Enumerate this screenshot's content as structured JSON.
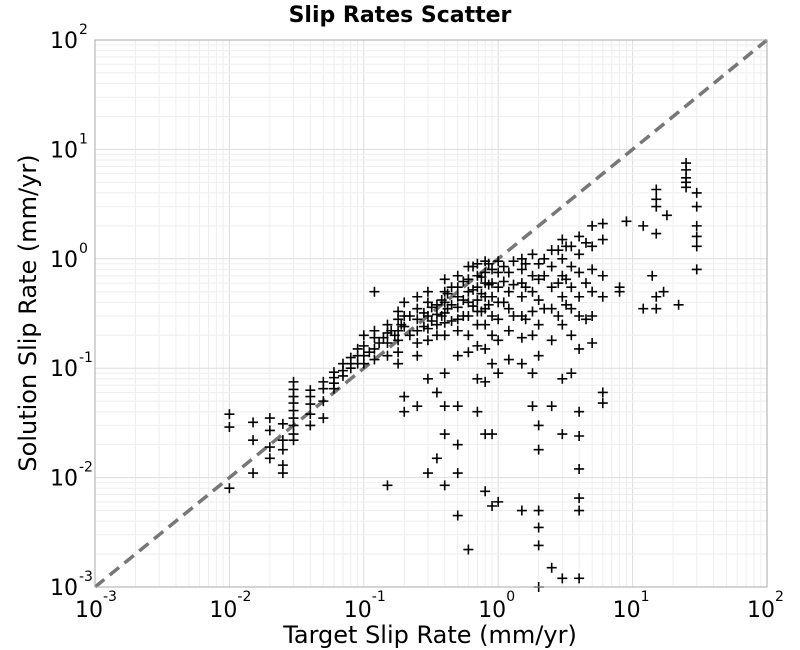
{
  "chart_data": {
    "type": "scatter",
    "title": "Slip Rates Scatter",
    "xlabel": "Target Slip Rate (mm/yr)",
    "ylabel": "Solution Slip Rate (mm/yr)",
    "xscale": "log",
    "yscale": "log",
    "xlim": [
      0.001,
      100
    ],
    "ylim": [
      0.001,
      100
    ],
    "grid": true,
    "x_ticks": [
      {
        "base": "10",
        "exp": "-3"
      },
      {
        "base": "10",
        "exp": "-2"
      },
      {
        "base": "10",
        "exp": "-1"
      },
      {
        "base": "10",
        "exp": "0"
      },
      {
        "base": "10",
        "exp": "1"
      },
      {
        "base": "10",
        "exp": "2"
      }
    ],
    "y_ticks": [
      {
        "base": "10",
        "exp": "-3"
      },
      {
        "base": "10",
        "exp": "-2"
      },
      {
        "base": "10",
        "exp": "-1"
      },
      {
        "base": "10",
        "exp": "0"
      },
      {
        "base": "10",
        "exp": "1"
      },
      {
        "base": "10",
        "exp": "2"
      }
    ],
    "reference_line": {
      "from": [
        0.001,
        0.001
      ],
      "to": [
        100,
        100
      ],
      "style": "dashed",
      "color": "#777777"
    },
    "marker": "+",
    "marker_color": "#000000",
    "points": [
      [
        0.01,
        0.038
      ],
      [
        0.01,
        0.029
      ],
      [
        0.01,
        0.008
      ],
      [
        0.015,
        0.032
      ],
      [
        0.015,
        0.022
      ],
      [
        0.015,
        0.011
      ],
      [
        0.02,
        0.035
      ],
      [
        0.02,
        0.027
      ],
      [
        0.02,
        0.019
      ],
      [
        0.02,
        0.015
      ],
      [
        0.025,
        0.031
      ],
      [
        0.025,
        0.022
      ],
      [
        0.025,
        0.018
      ],
      [
        0.025,
        0.013
      ],
      [
        0.025,
        0.011
      ],
      [
        0.03,
        0.075
      ],
      [
        0.03,
        0.064
      ],
      [
        0.03,
        0.055
      ],
      [
        0.03,
        0.048
      ],
      [
        0.03,
        0.041
      ],
      [
        0.03,
        0.035
      ],
      [
        0.03,
        0.03
      ],
      [
        0.03,
        0.025
      ],
      [
        0.03,
        0.022
      ],
      [
        0.04,
        0.063
      ],
      [
        0.04,
        0.055
      ],
      [
        0.04,
        0.047
      ],
      [
        0.04,
        0.038
      ],
      [
        0.04,
        0.03
      ],
      [
        0.05,
        0.075
      ],
      [
        0.05,
        0.065
      ],
      [
        0.05,
        0.05
      ],
      [
        0.05,
        0.035
      ],
      [
        0.06,
        0.092
      ],
      [
        0.06,
        0.082
      ],
      [
        0.06,
        0.073
      ],
      [
        0.06,
        0.065
      ],
      [
        0.07,
        0.11
      ],
      [
        0.07,
        0.095
      ],
      [
        0.07,
        0.085
      ],
      [
        0.08,
        0.125
      ],
      [
        0.08,
        0.11
      ],
      [
        0.08,
        0.1
      ],
      [
        0.09,
        0.15
      ],
      [
        0.09,
        0.13
      ],
      [
        0.09,
        0.11
      ],
      [
        0.1,
        0.2
      ],
      [
        0.1,
        0.16
      ],
      [
        0.1,
        0.13
      ],
      [
        0.1,
        0.11
      ],
      [
        0.12,
        0.22
      ],
      [
        0.12,
        0.19
      ],
      [
        0.12,
        0.15
      ],
      [
        0.12,
        0.12
      ],
      [
        0.12,
        0.5
      ],
      [
        0.15,
        0.25
      ],
      [
        0.15,
        0.21
      ],
      [
        0.15,
        0.17
      ],
      [
        0.15,
        0.13
      ],
      [
        0.15,
        0.0085
      ],
      [
        0.18,
        0.33
      ],
      [
        0.18,
        0.28
      ],
      [
        0.18,
        0.22
      ],
      [
        0.18,
        0.18
      ],
      [
        0.18,
        0.14
      ],
      [
        0.18,
        0.11
      ],
      [
        0.2,
        0.4
      ],
      [
        0.2,
        0.3
      ],
      [
        0.2,
        0.24
      ],
      [
        0.2,
        0.055
      ],
      [
        0.2,
        0.04
      ],
      [
        0.25,
        0.45
      ],
      [
        0.25,
        0.35
      ],
      [
        0.25,
        0.28
      ],
      [
        0.25,
        0.22
      ],
      [
        0.25,
        0.17
      ],
      [
        0.25,
        0.13
      ],
      [
        0.25,
        0.045
      ],
      [
        0.3,
        0.5
      ],
      [
        0.3,
        0.4
      ],
      [
        0.3,
        0.3
      ],
      [
        0.3,
        0.23
      ],
      [
        0.3,
        0.18
      ],
      [
        0.3,
        0.08
      ],
      [
        0.3,
        0.011
      ],
      [
        0.35,
        0.38
      ],
      [
        0.35,
        0.31
      ],
      [
        0.35,
        0.25
      ],
      [
        0.35,
        0.2
      ],
      [
        0.35,
        0.06
      ],
      [
        0.35,
        0.015
      ],
      [
        0.4,
        0.65
      ],
      [
        0.4,
        0.5
      ],
      [
        0.4,
        0.4
      ],
      [
        0.4,
        0.32
      ],
      [
        0.4,
        0.26
      ],
      [
        0.4,
        0.2
      ],
      [
        0.4,
        0.09
      ],
      [
        0.4,
        0.045
      ],
      [
        0.4,
        0.025
      ],
      [
        0.4,
        0.0085
      ],
      [
        0.5,
        0.7
      ],
      [
        0.5,
        0.55
      ],
      [
        0.5,
        0.45
      ],
      [
        0.5,
        0.36
      ],
      [
        0.5,
        0.28
      ],
      [
        0.5,
        0.22
      ],
      [
        0.5,
        0.13
      ],
      [
        0.5,
        0.045
      ],
      [
        0.5,
        0.02
      ],
      [
        0.5,
        0.011
      ],
      [
        0.5,
        0.0045
      ],
      [
        0.6,
        0.85
      ],
      [
        0.6,
        0.65
      ],
      [
        0.6,
        0.5
      ],
      [
        0.6,
        0.4
      ],
      [
        0.6,
        0.3
      ],
      [
        0.6,
        0.2
      ],
      [
        0.6,
        0.14
      ],
      [
        0.6,
        0.0022
      ],
      [
        0.7,
        0.9
      ],
      [
        0.7,
        0.7
      ],
      [
        0.7,
        0.55
      ],
      [
        0.7,
        0.42
      ],
      [
        0.7,
        0.33
      ],
      [
        0.7,
        0.25
      ],
      [
        0.7,
        0.16
      ],
      [
        0.7,
        0.08
      ],
      [
        0.7,
        0.04
      ],
      [
        0.8,
        0.95
      ],
      [
        0.8,
        0.75
      ],
      [
        0.8,
        0.6
      ],
      [
        0.8,
        0.45
      ],
      [
        0.8,
        0.35
      ],
      [
        0.8,
        0.25
      ],
      [
        0.8,
        0.15
      ],
      [
        0.8,
        0.075
      ],
      [
        0.8,
        0.025
      ],
      [
        0.8,
        0.0075
      ],
      [
        0.9,
        0.8
      ],
      [
        0.9,
        0.6
      ],
      [
        0.9,
        0.45
      ],
      [
        0.9,
        0.3
      ],
      [
        0.9,
        0.2
      ],
      [
        0.9,
        0.11
      ],
      [
        0.9,
        0.025
      ],
      [
        0.9,
        0.0055
      ],
      [
        1.0,
        0.95
      ],
      [
        1.0,
        0.75
      ],
      [
        1.0,
        0.55
      ],
      [
        1.0,
        0.4
      ],
      [
        1.0,
        0.28
      ],
      [
        1.0,
        0.18
      ],
      [
        1.0,
        0.09
      ],
      [
        1.0,
        0.006
      ],
      [
        1.2,
        0.75
      ],
      [
        1.2,
        0.5
      ],
      [
        1.2,
        0.35
      ],
      [
        1.2,
        0.22
      ],
      [
        1.2,
        0.12
      ],
      [
        1.5,
        1.0
      ],
      [
        1.5,
        0.8
      ],
      [
        1.5,
        0.6
      ],
      [
        1.5,
        0.45
      ],
      [
        1.5,
        0.3
      ],
      [
        1.5,
        0.19
      ],
      [
        1.5,
        0.11
      ],
      [
        1.5,
        0.005
      ],
      [
        1.8,
        1.1
      ],
      [
        1.8,
        0.7
      ],
      [
        1.8,
        0.5
      ],
      [
        1.8,
        0.33
      ],
      [
        1.8,
        0.2
      ],
      [
        1.8,
        0.09
      ],
      [
        1.8,
        0.045
      ],
      [
        2.0,
        0.9
      ],
      [
        2.0,
        0.65
      ],
      [
        2.0,
        0.42
      ],
      [
        2.0,
        0.25
      ],
      [
        2.0,
        0.13
      ],
      [
        2.0,
        0.03
      ],
      [
        2.0,
        0.018
      ],
      [
        2.0,
        0.005
      ],
      [
        2.0,
        0.0035
      ],
      [
        2.0,
        0.0024
      ],
      [
        2.0,
        0.001
      ],
      [
        2.5,
        1.2
      ],
      [
        2.5,
        0.85
      ],
      [
        2.5,
        0.55
      ],
      [
        2.5,
        0.35
      ],
      [
        2.5,
        0.18
      ],
      [
        2.5,
        0.045
      ],
      [
        2.5,
        0.0015
      ],
      [
        3.0,
        1.5
      ],
      [
        3.0,
        1.0
      ],
      [
        3.0,
        0.7
      ],
      [
        3.0,
        0.45
      ],
      [
        3.0,
        0.25
      ],
      [
        3.0,
        0.08
      ],
      [
        3.0,
        0.025
      ],
      [
        3.0,
        0.0012
      ],
      [
        3.5,
        1.3
      ],
      [
        3.5,
        0.85
      ],
      [
        3.5,
        0.55
      ],
      [
        3.5,
        0.35
      ],
      [
        3.5,
        0.2
      ],
      [
        3.5,
        0.09
      ],
      [
        4.0,
        1.6
      ],
      [
        4.0,
        1.1
      ],
      [
        4.0,
        0.75
      ],
      [
        4.0,
        0.45
      ],
      [
        4.0,
        0.3
      ],
      [
        4.0,
        0.15
      ],
      [
        4.0,
        0.04
      ],
      [
        4.0,
        0.024
      ],
      [
        4.0,
        0.012
      ],
      [
        4.0,
        0.0065
      ],
      [
        4.0,
        0.005
      ],
      [
        4.0,
        0.0012
      ],
      [
        5.0,
        2.0
      ],
      [
        5.0,
        1.3
      ],
      [
        5.0,
        0.8
      ],
      [
        5.0,
        0.5
      ],
      [
        5.0,
        0.3
      ],
      [
        5.0,
        0.17
      ],
      [
        6.0,
        2.1
      ],
      [
        6.0,
        1.5
      ],
      [
        6.0,
        0.7
      ],
      [
        6.0,
        0.45
      ],
      [
        6.0,
        0.06
      ],
      [
        6.0,
        0.048
      ],
      [
        8.0,
        0.55
      ],
      [
        8.0,
        0.5
      ],
      [
        9.0,
        2.2
      ],
      [
        12.0,
        2.0
      ],
      [
        12.0,
        0.35
      ],
      [
        14.0,
        0.7
      ],
      [
        15.0,
        4.3
      ],
      [
        15.0,
        3.5
      ],
      [
        15.0,
        3.0
      ],
      [
        15.0,
        1.7
      ],
      [
        15.0,
        0.45
      ],
      [
        15.0,
        0.35
      ],
      [
        17.0,
        0.5
      ],
      [
        18.0,
        2.5
      ],
      [
        22.0,
        0.38
      ],
      [
        25.0,
        7.5
      ],
      [
        25.0,
        6.5
      ],
      [
        25.0,
        5.5
      ],
      [
        25.0,
        5.0
      ],
      [
        25.0,
        4.5
      ],
      [
        30.0,
        4.0
      ],
      [
        30.0,
        3.0
      ],
      [
        30.0,
        2.0
      ],
      [
        30.0,
        1.6
      ],
      [
        30.0,
        1.3
      ],
      [
        30.0,
        0.8
      ],
      [
        0.45,
        0.55
      ],
      [
        0.45,
        0.38
      ],
      [
        0.45,
        0.27
      ],
      [
        0.55,
        0.62
      ],
      [
        0.55,
        0.42
      ],
      [
        0.55,
        0.3
      ],
      [
        0.65,
        0.85
      ],
      [
        0.65,
        0.52
      ],
      [
        0.65,
        0.37
      ],
      [
        0.75,
        0.68
      ],
      [
        0.75,
        0.48
      ],
      [
        0.75,
        0.33
      ],
      [
        0.85,
        0.9
      ],
      [
        0.85,
        0.58
      ],
      [
        0.85,
        0.38
      ],
      [
        1.1,
        0.85
      ],
      [
        1.1,
        0.62
      ],
      [
        1.1,
        0.4
      ],
      [
        1.3,
        0.95
      ],
      [
        1.3,
        0.58
      ],
      [
        1.3,
        0.3
      ],
      [
        1.6,
        0.9
      ],
      [
        1.6,
        0.55
      ],
      [
        1.6,
        0.28
      ],
      [
        2.2,
        1.0
      ],
      [
        2.2,
        0.7
      ],
      [
        2.2,
        0.35
      ],
      [
        2.8,
        1.2
      ],
      [
        2.8,
        0.6
      ],
      [
        2.8,
        0.3
      ],
      [
        3.2,
        1.3
      ],
      [
        3.2,
        0.65
      ],
      [
        3.2,
        0.38
      ],
      [
        4.5,
        1.4
      ],
      [
        4.5,
        0.6
      ],
      [
        4.5,
        0.28
      ],
      [
        0.22,
        0.3
      ],
      [
        0.22,
        0.2
      ],
      [
        0.28,
        0.32
      ],
      [
        0.28,
        0.24
      ],
      [
        0.32,
        0.36
      ],
      [
        0.32,
        0.27
      ],
      [
        0.38,
        0.42
      ],
      [
        0.38,
        0.3
      ],
      [
        0.42,
        0.48
      ],
      [
        0.42,
        0.35
      ],
      [
        0.16,
        0.22
      ],
      [
        0.14,
        0.19
      ],
      [
        0.11,
        0.14
      ],
      [
        0.13,
        0.17
      ],
      [
        0.17,
        0.2
      ],
      [
        0.19,
        0.25
      ]
    ]
  }
}
